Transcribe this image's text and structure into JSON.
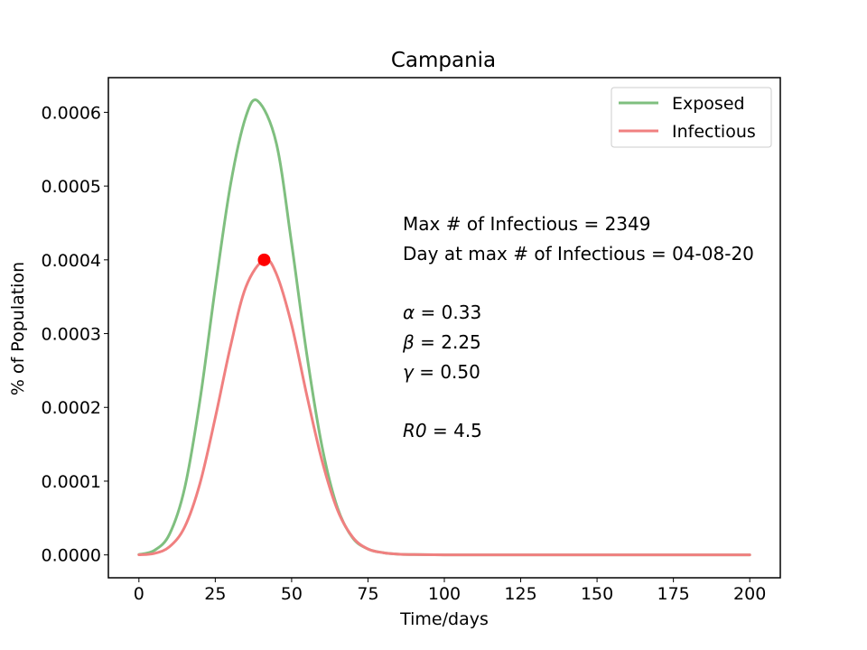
{
  "chart_data": {
    "type": "line",
    "title": "Campania",
    "xlabel": "Time/days",
    "ylabel": "% of Population",
    "xlim": [
      -10,
      210
    ],
    "ylim": [
      -3.1e-05,
      0.000647
    ],
    "xticks": [
      0,
      25,
      50,
      75,
      100,
      125,
      150,
      175,
      200
    ],
    "xtick_labels": [
      "0",
      "25",
      "50",
      "75",
      "100",
      "125",
      "150",
      "175",
      "200"
    ],
    "yticks": [
      0,
      0.0001,
      0.0002,
      0.0003,
      0.0004,
      0.0005,
      0.0006
    ],
    "ytick_labels": [
      "0.0000",
      "0.0001",
      "0.0002",
      "0.0003",
      "0.0004",
      "0.0005",
      "0.0006"
    ],
    "grid": false,
    "legend_position": "top-right",
    "series": [
      {
        "name": "Exposed",
        "color": "#7fbf7f",
        "x": [
          0,
          5,
          10,
          15,
          20,
          25,
          30,
          35,
          39,
          45,
          50,
          55,
          60,
          65,
          70,
          75,
          80,
          85,
          90,
          100,
          120,
          150,
          200
        ],
        "y": [
          5e-07,
          6e-06,
          2.8e-05,
          9.1e-05,
          0.00021,
          0.000362,
          0.000502,
          0.000594,
          0.000615,
          0.000558,
          0.000422,
          0.000271,
          0.000146,
          6.4e-05,
          2.3e-05,
          8e-06,
          3e-06,
          1e-06,
          5e-07,
          1e-07,
          0,
          0,
          0
        ]
      },
      {
        "name": "Infectious",
        "color": "#f08080",
        "x": [
          0,
          5,
          10,
          15,
          20,
          25,
          30,
          35,
          41,
          45,
          50,
          55,
          60,
          65,
          70,
          75,
          80,
          85,
          90,
          100,
          120,
          150,
          200
        ],
        "y": [
          2e-07,
          2e-06,
          1.1e-05,
          3.8e-05,
          9.7e-05,
          0.000186,
          0.000283,
          0.000363,
          0.0004,
          0.000381,
          0.000312,
          0.000216,
          0.000127,
          6.1e-05,
          2.4e-05,
          8e-06,
          3e-06,
          1e-06,
          5e-07,
          1e-07,
          0,
          0,
          0
        ]
      }
    ],
    "marker": {
      "x": 41,
      "y": 0.0004,
      "color": "#ff0000",
      "label": "max infectious"
    },
    "annotations": {
      "max_infectious": "Max # of Infectious = 2349",
      "day_max": "Day at max # of Infectious = 04-08-20",
      "alpha_sym": "α",
      "alpha_val": " = 0.33",
      "beta_sym": "β",
      "beta_val": " = 2.25",
      "gamma_sym": "γ",
      "gamma_val": " = 0.50",
      "r0_sym": "R0",
      "r0_val": " = 4.5"
    }
  }
}
